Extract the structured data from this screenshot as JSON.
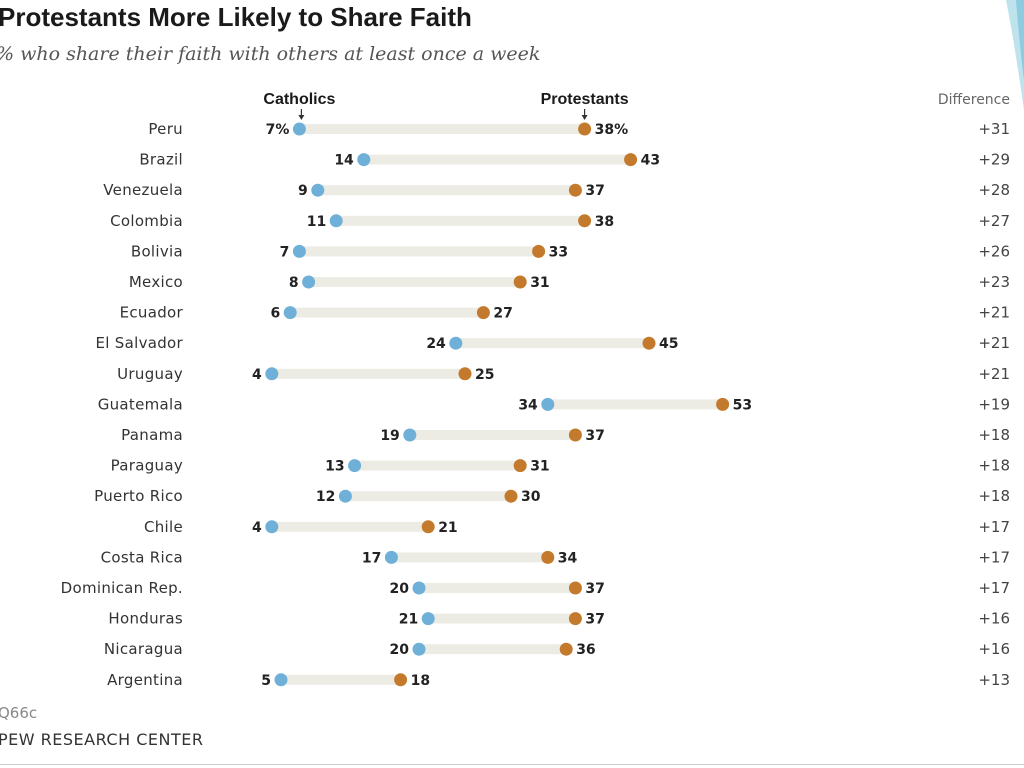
{
  "title": "Protestants More Likely to Share Faith",
  "subtitle": "% who share their faith with others at least once a week",
  "note": "Q66c",
  "source": "PEW RESEARCH CENTER",
  "colors": {
    "catholics": "#6fb0d8",
    "protestants": "#c47a2c",
    "track": "#ecebe4"
  },
  "chart_data": {
    "type": "dot-range",
    "xlim": [
      0,
      60
    ],
    "series_labels": {
      "catholics": "Catholics",
      "protestants": "Protestants",
      "difference": "Difference"
    },
    "categories": [
      "Peru",
      "Brazil",
      "Venezuela",
      "Colombia",
      "Bolivia",
      "Mexico",
      "Ecuador",
      "El Salvador",
      "Uruguay",
      "Guatemala",
      "Panama",
      "Paraguay",
      "Puerto Rico",
      "Chile",
      "Costa Rica",
      "Dominican Rep.",
      "Honduras",
      "Nicaragua",
      "Argentina"
    ],
    "series": [
      {
        "name": "Catholics",
        "values": [
          7,
          14,
          9,
          11,
          7,
          8,
          6,
          24,
          4,
          34,
          19,
          13,
          12,
          4,
          17,
          20,
          21,
          20,
          5
        ]
      },
      {
        "name": "Protestants",
        "values": [
          38,
          43,
          37,
          38,
          33,
          31,
          27,
          45,
          25,
          53,
          37,
          31,
          30,
          21,
          34,
          37,
          37,
          36,
          18
        ]
      }
    ],
    "catholic_labels": [
      "7%",
      "14",
      "9",
      "11",
      "7",
      "8",
      "6",
      "24",
      "4",
      "34",
      "19",
      "13",
      "12",
      "4",
      "17",
      "20",
      "21",
      "20",
      "5"
    ],
    "protestant_labels": [
      "38%",
      "43",
      "37",
      "38",
      "33",
      "31",
      "27",
      "45",
      "25",
      "53",
      "37",
      "31",
      "30",
      "21",
      "34",
      "37",
      "37",
      "36",
      "18"
    ],
    "difference": [
      "+31",
      "+29",
      "+28",
      "+27",
      "+26",
      "+23",
      "+21",
      "+21",
      "+21",
      "+19",
      "+18",
      "+18",
      "+18",
      "+17",
      "+17",
      "+17",
      "+16",
      "+16",
      "+13"
    ]
  }
}
